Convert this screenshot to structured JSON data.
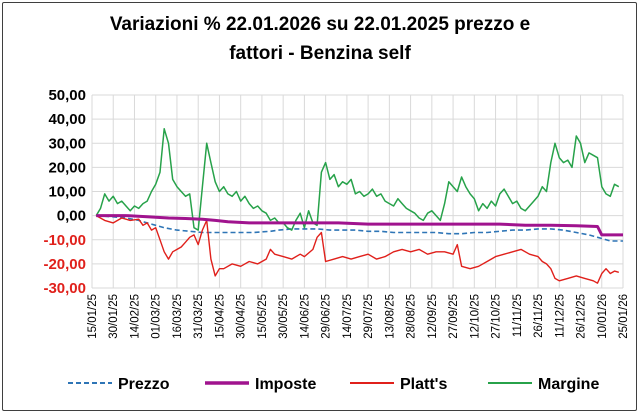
{
  "chart_data": {
    "type": "line",
    "title_lines": [
      "Variazioni % 22.01.2026 su 22.01.2025 prezzo e",
      "fattori - Benzina self"
    ],
    "xlabel": "",
    "ylabel": "",
    "ylim": [
      -30,
      50
    ],
    "y_ticks": [
      "50,00",
      "40,00",
      "30,00",
      "20,00",
      "10,00",
      "0,00",
      "-10,00",
      "-20,00",
      "-30,00"
    ],
    "y_tick_values": [
      50,
      40,
      30,
      20,
      10,
      0,
      -10,
      -20,
      -30
    ],
    "x_ticks": [
      "15/01/25",
      "30/01/25",
      "14/02/25",
      "01/03/25",
      "16/03/25",
      "31/03/25",
      "15/04/25",
      "30/04/25",
      "15/05/25",
      "30/05/25",
      "14/06/25",
      "29/06/25",
      "14/07/25",
      "29/07/25",
      "13/08/25",
      "28/08/25",
      "12/09/25",
      "27/09/25",
      "12/10/25",
      "27/10/25",
      "11/11/25",
      "26/11/25",
      "11/12/25",
      "26/12/25",
      "10/01/26",
      "25/01/26"
    ],
    "grid": true,
    "legend_position": "bottom",
    "series": [
      {
        "name": "Prezzo",
        "color": "#2e75b6",
        "style": "dashed",
        "points": [
          [
            1,
            0
          ],
          [
            5,
            -0.5
          ],
          [
            8,
            -1
          ],
          [
            11,
            -2
          ],
          [
            14,
            -3.5
          ],
          [
            17,
            -5
          ],
          [
            20,
            -6
          ],
          [
            23,
            -6.5
          ],
          [
            26,
            -7
          ],
          [
            29,
            -7
          ],
          [
            32,
            -7
          ],
          [
            35,
            -7
          ],
          [
            38,
            -7
          ],
          [
            42,
            -6.5
          ],
          [
            44,
            -6
          ],
          [
            47,
            -5.5
          ],
          [
            50,
            -5.5
          ],
          [
            53,
            -5.5
          ],
          [
            56,
            -6
          ],
          [
            59,
            -6
          ],
          [
            62,
            -6
          ],
          [
            65,
            -6.5
          ],
          [
            68,
            -6.5
          ],
          [
            71,
            -7
          ],
          [
            75,
            -7
          ],
          [
            78,
            -7
          ],
          [
            81,
            -7
          ],
          [
            84,
            -7.5
          ],
          [
            87,
            -7.5
          ],
          [
            90,
            -7
          ],
          [
            93,
            -7
          ],
          [
            96,
            -6.5
          ],
          [
            99,
            -6
          ],
          [
            102,
            -6
          ],
          [
            105,
            -5.5
          ],
          [
            108,
            -5.5
          ],
          [
            111,
            -6
          ],
          [
            114,
            -7
          ],
          [
            117,
            -8
          ],
          [
            120,
            -9.5
          ],
          [
            122,
            -10.5
          ],
          [
            125,
            -10.5
          ]
        ]
      },
      {
        "name": "Imposte",
        "color": "#a0138e",
        "style": "solid",
        "points": [
          [
            1,
            0
          ],
          [
            8,
            0
          ],
          [
            13,
            -0.5
          ],
          [
            18,
            -1
          ],
          [
            22,
            -1.2
          ],
          [
            26,
            -1.5
          ],
          [
            29,
            -2
          ],
          [
            32,
            -2.5
          ],
          [
            37,
            -3
          ],
          [
            43,
            -3
          ],
          [
            48,
            -3
          ],
          [
            53,
            -3
          ],
          [
            58,
            -3
          ],
          [
            65,
            -3.5
          ],
          [
            72,
            -3.5
          ],
          [
            80,
            -3.5
          ],
          [
            86,
            -3.5
          ],
          [
            90,
            -3.5
          ],
          [
            96,
            -3.5
          ],
          [
            102,
            -4
          ],
          [
            108,
            -4
          ],
          [
            114,
            -4.2
          ],
          [
            119,
            -4.5
          ],
          [
            120,
            -8
          ],
          [
            125,
            -8
          ]
        ]
      },
      {
        "name": "Platt's",
        "color": "#e0201b",
        "style": "solid",
        "points": [
          [
            1,
            0
          ],
          [
            3,
            -2
          ],
          [
            5,
            -3
          ],
          [
            7,
            -1
          ],
          [
            9,
            -2
          ],
          [
            11,
            -1.5
          ],
          [
            12,
            -4
          ],
          [
            13,
            -3
          ],
          [
            14,
            -6
          ],
          [
            15,
            -5
          ],
          [
            16,
            -10
          ],
          [
            17,
            -15
          ],
          [
            18,
            -18
          ],
          [
            19,
            -15
          ],
          [
            20,
            -14
          ],
          [
            21,
            -13
          ],
          [
            22,
            -11
          ],
          [
            23,
            -9
          ],
          [
            24,
            -8
          ],
          [
            25,
            -12
          ],
          [
            26,
            -6
          ],
          [
            27,
            -2
          ],
          [
            28,
            -18
          ],
          [
            29,
            -25
          ],
          [
            30,
            -22
          ],
          [
            31,
            -22
          ],
          [
            33,
            -20
          ],
          [
            35,
            -21
          ],
          [
            37,
            -19
          ],
          [
            39,
            -20
          ],
          [
            41,
            -18
          ],
          [
            42,
            -14
          ],
          [
            43,
            -16
          ],
          [
            45,
            -17
          ],
          [
            47,
            -18
          ],
          [
            49,
            -16
          ],
          [
            50,
            -17
          ],
          [
            52,
            -14
          ],
          [
            53,
            -9
          ],
          [
            54,
            -7
          ],
          [
            55,
            -19
          ],
          [
            57,
            -18
          ],
          [
            59,
            -17
          ],
          [
            61,
            -18
          ],
          [
            63,
            -17
          ],
          [
            65,
            -16
          ],
          [
            67,
            -18
          ],
          [
            69,
            -17
          ],
          [
            71,
            -15
          ],
          [
            73,
            -14
          ],
          [
            75,
            -15
          ],
          [
            77,
            -14
          ],
          [
            79,
            -16
          ],
          [
            81,
            -15
          ],
          [
            83,
            -15
          ],
          [
            85,
            -16
          ],
          [
            86,
            -12
          ],
          [
            87,
            -21
          ],
          [
            89,
            -22
          ],
          [
            91,
            -21
          ],
          [
            93,
            -19
          ],
          [
            95,
            -17
          ],
          [
            97,
            -16
          ],
          [
            99,
            -15
          ],
          [
            101,
            -14
          ],
          [
            103,
            -16
          ],
          [
            105,
            -17
          ],
          [
            106,
            -19
          ],
          [
            107,
            -20
          ],
          [
            108,
            -22
          ],
          [
            109,
            -26
          ],
          [
            110,
            -27
          ],
          [
            112,
            -26
          ],
          [
            114,
            -25
          ],
          [
            116,
            -26
          ],
          [
            118,
            -27
          ],
          [
            119,
            -28
          ],
          [
            120,
            -24
          ],
          [
            121,
            -22
          ],
          [
            122,
            -24
          ],
          [
            123,
            -23
          ],
          [
            124,
            -23.5
          ]
        ]
      },
      {
        "name": "Margine",
        "color": "#27a24a",
        "style": "solid",
        "points": [
          [
            1,
            0
          ],
          [
            2,
            3
          ],
          [
            3,
            9
          ],
          [
            4,
            6
          ],
          [
            5,
            8
          ],
          [
            6,
            5
          ],
          [
            7,
            6
          ],
          [
            8,
            4
          ],
          [
            9,
            2
          ],
          [
            10,
            4
          ],
          [
            11,
            3
          ],
          [
            12,
            5
          ],
          [
            13,
            6
          ],
          [
            14,
            10
          ],
          [
            15,
            13
          ],
          [
            16,
            18
          ],
          [
            17,
            36
          ],
          [
            18,
            30
          ],
          [
            19,
            15
          ],
          [
            20,
            12
          ],
          [
            21,
            10
          ],
          [
            22,
            8
          ],
          [
            23,
            9
          ],
          [
            24,
            -5
          ],
          [
            25,
            -6
          ],
          [
            26,
            12
          ],
          [
            27,
            30
          ],
          [
            28,
            22
          ],
          [
            29,
            14
          ],
          [
            30,
            10
          ],
          [
            31,
            12
          ],
          [
            32,
            9
          ],
          [
            33,
            8
          ],
          [
            34,
            10
          ],
          [
            35,
            6
          ],
          [
            36,
            8
          ],
          [
            37,
            5
          ],
          [
            38,
            3
          ],
          [
            39,
            4
          ],
          [
            40,
            2
          ],
          [
            41,
            1
          ],
          [
            42,
            -2
          ],
          [
            43,
            -1
          ],
          [
            44,
            -3
          ],
          [
            45,
            -3
          ],
          [
            46,
            -5
          ],
          [
            47,
            -6
          ],
          [
            48,
            -2
          ],
          [
            49,
            1
          ],
          [
            50,
            -5
          ],
          [
            51,
            2
          ],
          [
            52,
            -3
          ],
          [
            53,
            -4
          ],
          [
            54,
            18
          ],
          [
            55,
            22
          ],
          [
            56,
            15
          ],
          [
            57,
            17
          ],
          [
            58,
            12
          ],
          [
            59,
            14
          ],
          [
            60,
            13
          ],
          [
            61,
            15
          ],
          [
            62,
            9
          ],
          [
            63,
            10
          ],
          [
            64,
            8
          ],
          [
            65,
            9
          ],
          [
            66,
            11
          ],
          [
            67,
            8
          ],
          [
            68,
            9
          ],
          [
            69,
            6
          ],
          [
            70,
            5
          ],
          [
            71,
            4
          ],
          [
            72,
            7
          ],
          [
            73,
            5
          ],
          [
            74,
            3
          ],
          [
            75,
            2
          ],
          [
            76,
            1
          ],
          [
            77,
            -1
          ],
          [
            78,
            -2
          ],
          [
            79,
            1
          ],
          [
            80,
            2
          ],
          [
            81,
            0
          ],
          [
            82,
            -2
          ],
          [
            83,
            5
          ],
          [
            84,
            14
          ],
          [
            85,
            12
          ],
          [
            86,
            10
          ],
          [
            87,
            16
          ],
          [
            88,
            12
          ],
          [
            89,
            9
          ],
          [
            90,
            7
          ],
          [
            91,
            2
          ],
          [
            92,
            5
          ],
          [
            93,
            3
          ],
          [
            94,
            6
          ],
          [
            95,
            4
          ],
          [
            96,
            9
          ],
          [
            97,
            11
          ],
          [
            98,
            8
          ],
          [
            99,
            5
          ],
          [
            100,
            6
          ],
          [
            101,
            3
          ],
          [
            102,
            2
          ],
          [
            103,
            4
          ],
          [
            104,
            6
          ],
          [
            105,
            8
          ],
          [
            106,
            12
          ],
          [
            107,
            10
          ],
          [
            108,
            22
          ],
          [
            109,
            30
          ],
          [
            110,
            24
          ],
          [
            111,
            22
          ],
          [
            112,
            23
          ],
          [
            113,
            20
          ],
          [
            114,
            33
          ],
          [
            115,
            30
          ],
          [
            116,
            22
          ],
          [
            117,
            26
          ],
          [
            118,
            25
          ],
          [
            119,
            24
          ],
          [
            120,
            12
          ],
          [
            121,
            9
          ],
          [
            122,
            8
          ],
          [
            123,
            13
          ],
          [
            124,
            12
          ]
        ]
      }
    ]
  }
}
